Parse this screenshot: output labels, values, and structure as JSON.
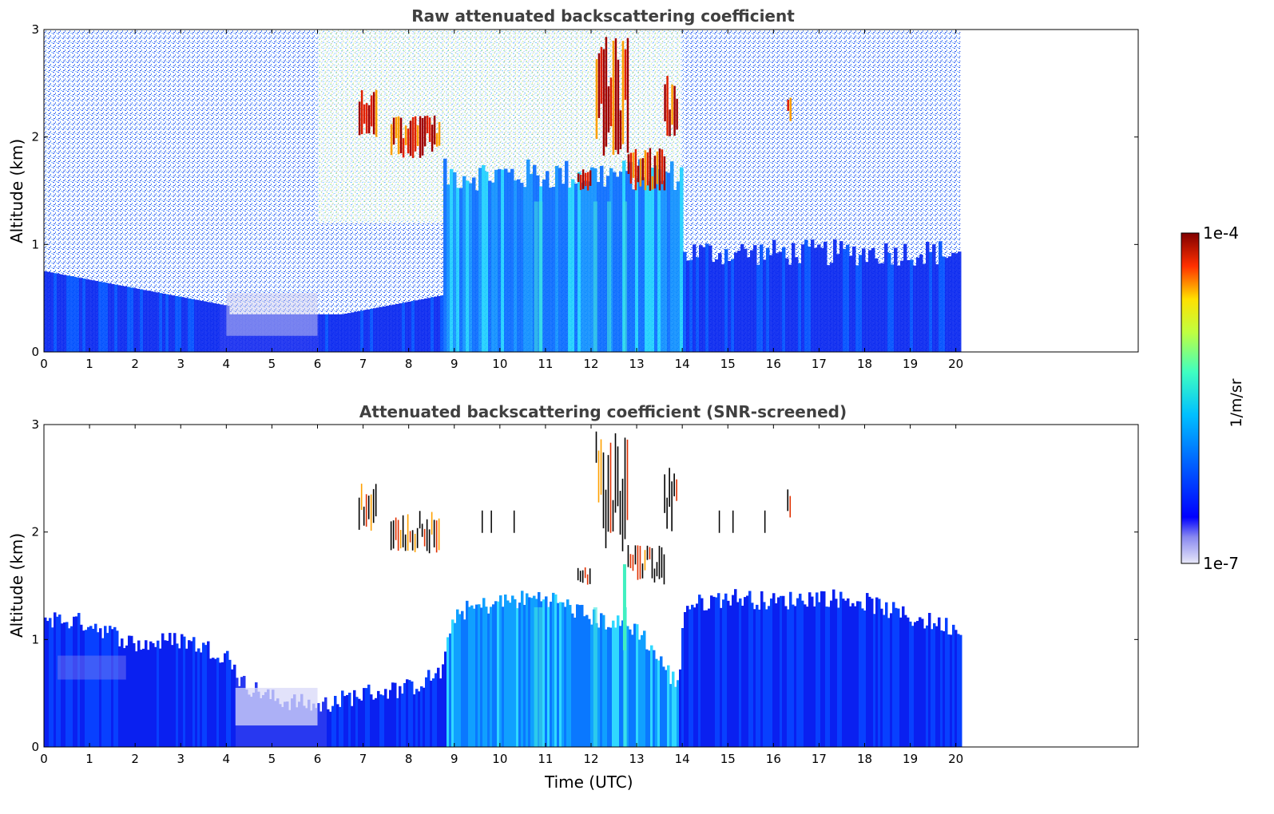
{
  "chart_data": [
    {
      "type": "heatmap",
      "title": "Raw attenuated backscattering coefficient",
      "xlabel": "",
      "ylabel": "Altitude (km)",
      "xlim": [
        0,
        24
      ],
      "ylim": [
        0,
        3
      ],
      "xticks": [
        0,
        1,
        2,
        3,
        4,
        5,
        6,
        7,
        8,
        9,
        10,
        11,
        12,
        13,
        14,
        15,
        16,
        17,
        18,
        19,
        20
      ],
      "yticks": [
        0,
        1,
        2,
        3
      ],
      "data_end_time": 20.1,
      "cloud_patches": [
        {
          "t": [
            6.9,
            7.3
          ],
          "alt": [
            2.0,
            2.45
          ]
        },
        {
          "t": [
            7.6,
            8.7
          ],
          "alt": [
            1.8,
            2.2
          ]
        },
        {
          "t": [
            11.7,
            12.0
          ],
          "alt": [
            1.5,
            1.7
          ]
        },
        {
          "t": [
            12.1,
            12.8
          ],
          "alt": [
            1.8,
            2.95
          ]
        },
        {
          "t": [
            12.8,
            13.6
          ],
          "alt": [
            1.5,
            1.9
          ]
        },
        {
          "t": [
            13.6,
            13.9
          ],
          "alt": [
            2.0,
            2.6
          ]
        },
        {
          "t": [
            16.3,
            16.4
          ],
          "alt": [
            2.1,
            2.4
          ]
        }
      ]
    },
    {
      "type": "heatmap",
      "title": "Attenuated backscattering coefficient (SNR-screened)",
      "xlabel": "Time (UTC)",
      "ylabel": "Altitude (km)",
      "xlim": [
        0,
        24
      ],
      "ylim": [
        0,
        3
      ],
      "xticks": [
        0,
        1,
        2,
        3,
        4,
        5,
        6,
        7,
        8,
        9,
        10,
        11,
        12,
        13,
        14,
        15,
        16,
        17,
        18,
        19,
        20
      ],
      "yticks": [
        0,
        1,
        2,
        3
      ],
      "data_end_time": 20.1,
      "boundary_layer_top_km": [
        {
          "t": 0,
          "alt": 1.2
        },
        {
          "t": 1,
          "alt": 1.15
        },
        {
          "t": 2,
          "alt": 0.95
        },
        {
          "t": 3,
          "alt": 1.0
        },
        {
          "t": 4,
          "alt": 0.85
        },
        {
          "t": 4.3,
          "alt": 0.6
        },
        {
          "t": 5,
          "alt": 0.45
        },
        {
          "t": 6,
          "alt": 0.38
        },
        {
          "t": 7,
          "alt": 0.5
        },
        {
          "t": 8,
          "alt": 0.55
        },
        {
          "t": 8.7,
          "alt": 0.7
        },
        {
          "t": 9,
          "alt": 1.25
        },
        {
          "t": 10,
          "alt": 1.35
        },
        {
          "t": 11,
          "alt": 1.4
        },
        {
          "t": 12,
          "alt": 1.2
        },
        {
          "t": 13,
          "alt": 1.1
        },
        {
          "t": 13.9,
          "alt": 0.55
        },
        {
          "t": 14,
          "alt": 1.3
        },
        {
          "t": 15,
          "alt": 1.4
        },
        {
          "t": 16,
          "alt": 1.35
        },
        {
          "t": 17,
          "alt": 1.4
        },
        {
          "t": 18,
          "alt": 1.35
        },
        {
          "t": 19,
          "alt": 1.2
        },
        {
          "t": 20.1,
          "alt": 1.1
        }
      ]
    }
  ],
  "colorbar": {
    "max_label": "1e-4",
    "min_label": "1e-7",
    "unit": "1/m/sr",
    "colormap": "jet"
  }
}
